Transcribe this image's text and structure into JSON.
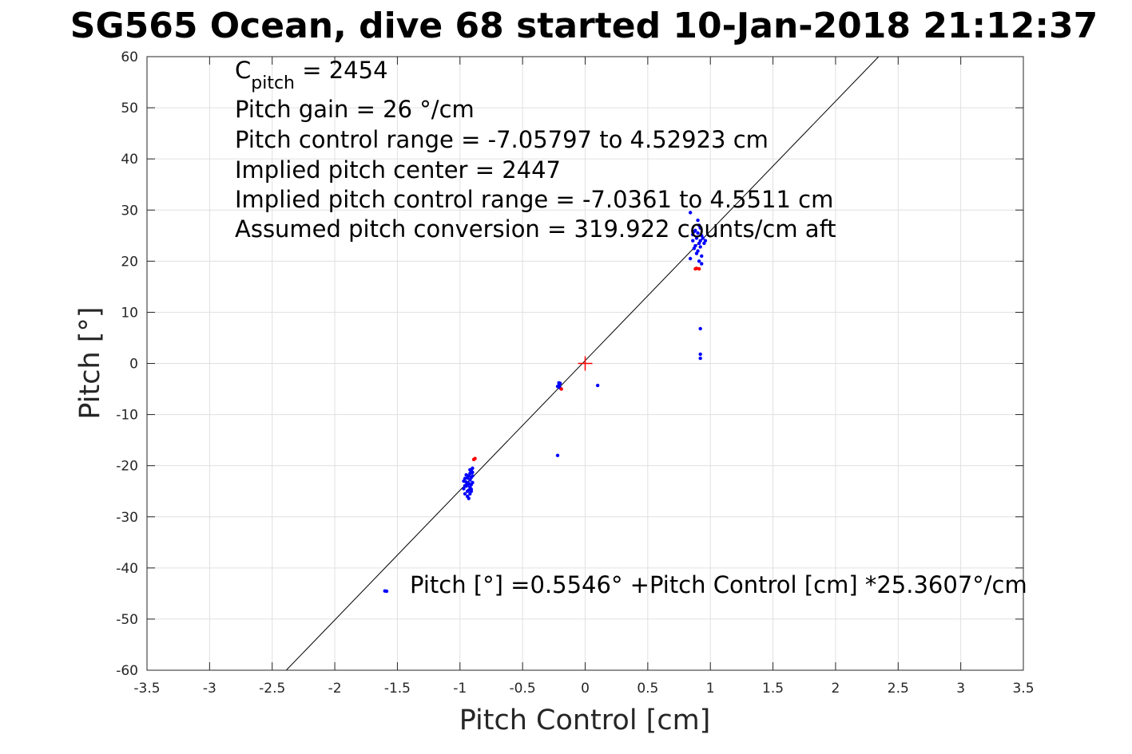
{
  "chart_data": {
    "type": "scatter",
    "title": "SG565 Ocean, dive 68 started 10-Jan-2018 21:12:37",
    "xlabel": "Pitch Control [cm]",
    "ylabel": "Pitch [°]",
    "xlim": [
      -3.5,
      3.5
    ],
    "ylim": [
      -60,
      60
    ],
    "grid": true,
    "x_ticks": [
      -3.5,
      -3,
      -2.5,
      -2,
      -1.5,
      -1,
      -0.5,
      0,
      0.5,
      1,
      1.5,
      2,
      2.5,
      3,
      3.5
    ],
    "x_tick_labels": [
      "-3.5",
      "-3",
      "-2.5",
      "-2",
      "-1.5",
      "-1",
      "-0.5",
      "0",
      "0.5",
      "1",
      "1.5",
      "2",
      "2.5",
      "3",
      "3.5"
    ],
    "y_ticks": [
      -60,
      -50,
      -40,
      -30,
      -20,
      -10,
      0,
      10,
      20,
      30,
      40,
      50,
      60
    ],
    "y_tick_labels": [
      "-60",
      "-50",
      "-40",
      "-30",
      "-20",
      "-10",
      "0",
      "10",
      "20",
      "30",
      "40",
      "50",
      "60"
    ],
    "annotations": {
      "cpitch_main": "C",
      "cpitch_sub": "pitch",
      "cpitch_value": " = 2454",
      "line2": "Pitch gain = 26 °/cm",
      "line3": "Pitch control range = -7.05797 to 4.52923 cm",
      "line4": "Implied pitch center = 2447",
      "line5": "Implied pitch control range = -7.0361 to 4.5511 cm",
      "line6": "Assumed pitch conversion = 319.922 counts/cm aft",
      "fit_label": "Pitch [°] =0.5546° +Pitch Control [cm] *25.3607°/cm"
    },
    "fit_line": {
      "intercept": 0.5546,
      "slope": 25.3607,
      "color": "#000000"
    },
    "center_marker": {
      "x": 0,
      "y": 0,
      "color": "#ff0000"
    },
    "series": [
      {
        "color": "#0000ff",
        "points": [
          [
            -0.96,
            -22.5
          ],
          [
            -0.95,
            -23.2
          ],
          [
            -0.95,
            -24.0
          ],
          [
            -0.94,
            -25.0
          ],
          [
            -0.94,
            -26.0
          ],
          [
            -0.93,
            -22.0
          ],
          [
            -0.93,
            -23.5
          ],
          [
            -0.93,
            -24.8
          ],
          [
            -0.92,
            -21.5
          ],
          [
            -0.92,
            -22.8
          ],
          [
            -0.92,
            -24.2
          ],
          [
            -0.92,
            -25.5
          ],
          [
            -0.91,
            -21.0
          ],
          [
            -0.91,
            -22.3
          ],
          [
            -0.91,
            -23.7
          ],
          [
            -0.91,
            -25.0
          ],
          [
            -0.9,
            -20.5
          ],
          [
            -0.9,
            -22.0
          ],
          [
            -0.9,
            -23.3
          ],
          [
            -0.97,
            -24.5
          ],
          [
            -0.97,
            -23.0
          ],
          [
            -0.96,
            -25.5
          ],
          [
            -0.95,
            -21.8
          ],
          [
            -0.94,
            -23.8
          ],
          [
            -0.93,
            -26.4
          ],
          [
            -0.92,
            -20.8
          ],
          [
            -0.91,
            -24.6
          ],
          [
            -0.94,
            -22.4
          ],
          [
            -0.96,
            -23.9
          ],
          [
            -0.9,
            -21.3
          ],
          [
            -0.21,
            -3.8
          ],
          [
            -0.21,
            -4.3
          ],
          [
            -0.2,
            -4.8
          ],
          [
            -0.2,
            -3.9
          ],
          [
            -0.22,
            -4.5
          ],
          [
            0.1,
            -4.3
          ],
          [
            -0.22,
            -18.0
          ],
          [
            -1.6,
            -44.5
          ],
          [
            0.84,
            29.5
          ],
          [
            0.84,
            20.5
          ],
          [
            0.86,
            24.0
          ],
          [
            0.86,
            25.2
          ],
          [
            0.87,
            22.5
          ],
          [
            0.88,
            23.0
          ],
          [
            0.88,
            26.0
          ],
          [
            0.89,
            24.5
          ],
          [
            0.89,
            21.5
          ],
          [
            0.9,
            25.5
          ],
          [
            0.9,
            22.0
          ],
          [
            0.91,
            27.0
          ],
          [
            0.91,
            23.5
          ],
          [
            0.91,
            20.0
          ],
          [
            0.92,
            24.0
          ],
          [
            0.92,
            26.5
          ],
          [
            0.92,
            22.8
          ],
          [
            0.93,
            25.0
          ],
          [
            0.93,
            21.0
          ],
          [
            0.94,
            24.5
          ],
          [
            0.95,
            23.5
          ],
          [
            0.96,
            24.0
          ],
          [
            0.9,
            28.0
          ],
          [
            0.87,
            25.8
          ],
          [
            0.93,
            19.5
          ],
          [
            0.92,
            6.8
          ],
          [
            0.92,
            1.8
          ],
          [
            0.92,
            1.0
          ]
        ]
      },
      {
        "color": "#ff0000",
        "points": [
          [
            -0.88,
            -18.6
          ],
          [
            -0.89,
            -18.8
          ],
          [
            -0.19,
            -5.0
          ],
          [
            0.88,
            18.5
          ],
          [
            0.89,
            18.6
          ],
          [
            0.91,
            18.5
          ]
        ]
      }
    ]
  }
}
